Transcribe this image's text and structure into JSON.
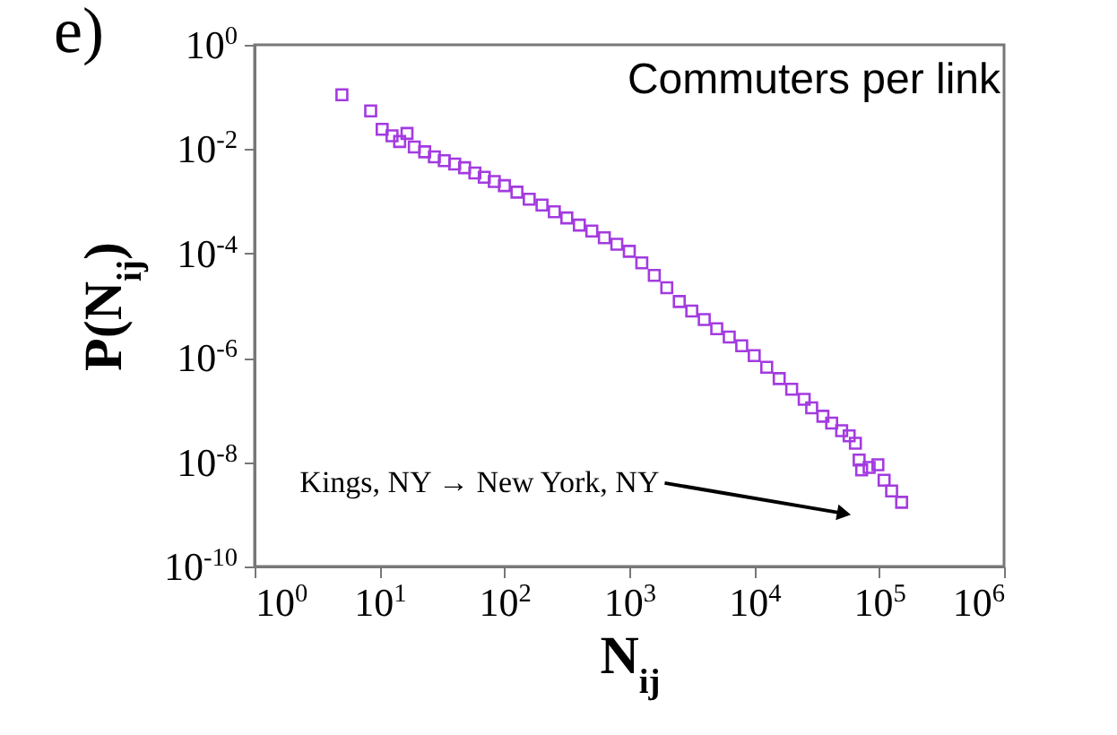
{
  "chart_data": {
    "type": "scatter",
    "title": "Commuters per link",
    "xlabel": "N$_{ij}$",
    "ylabel": "P(N$_{ij}$)",
    "log": "xy",
    "marker": "square",
    "grid": false,
    "annotations": [
      "e)",
      "Kings, NY → New York, NY"
    ],
    "xlim": [
      1,
      1000000
    ],
    "ylim": [
      1e-10,
      1
    ],
    "xticks": [
      {
        "value": 1,
        "label": "10$^{0}$"
      },
      {
        "value": 10,
        "label": "10$^{1}$"
      },
      {
        "value": 100,
        "label": "10$^{2}$"
      },
      {
        "value": 1000,
        "label": "10$^{3}$"
      },
      {
        "value": 10000,
        "label": "10$^{4}$"
      },
      {
        "value": 100000,
        "label": "10$^{5}$"
      },
      {
        "value": 1000000,
        "label": "10$^{6}$"
      }
    ],
    "yticks": [
      {
        "value": 1e-10,
        "label": "10$^{-10}$"
      },
      {
        "value": 1e-08,
        "label": "10$^{-8}$"
      },
      {
        "value": 1e-06,
        "label": "10$^{-6}$"
      },
      {
        "value": 0.0001,
        "label": "10$^{-4}$"
      },
      {
        "value": 0.01,
        "label": "10$^{-2}$"
      },
      {
        "value": 1,
        "label": "10$^{0}$"
      }
    ],
    "series": [
      {
        "color": "#a33be0",
        "x": [
          5.0,
          8.5,
          10.5,
          12.6,
          14.5,
          16.6,
          19,
          23,
          27.5,
          33,
          40,
          48,
          58,
          69,
          83,
          100,
          126,
          158,
          200,
          251,
          316,
          398,
          501,
          631,
          794,
          1000,
          1259,
          1585,
          1995,
          2512,
          3162,
          3981,
          5012,
          6310,
          7943,
          10000,
          12590,
          15850,
          19950,
          25120,
          28840,
          35480,
          41690,
          50120,
          57540,
          64570,
          69180,
          72440,
          83180,
          97720,
          109600,
          125900,
          151400
        ],
        "values": [
          0.11,
          0.054,
          0.024,
          0.018,
          0.014,
          0.02,
          0.011,
          0.0089,
          0.0071,
          0.006,
          0.0052,
          0.0044,
          0.0035,
          0.0029,
          0.0024,
          0.002,
          0.0015,
          0.0011,
          0.00085,
          0.00063,
          0.00048,
          0.00035,
          0.00027,
          0.0002,
          0.00015,
          0.00011,
          6.6e-05,
          3.8e-05,
          2.2e-05,
          1.2e-05,
          7.9e-06,
          5.4e-06,
          3.6e-06,
          2.5e-06,
          1.7e-06,
          1.1e-06,
          6.6e-07,
          4e-07,
          2.5e-07,
          1.6e-07,
          1.1e-07,
          7.6e-08,
          5.6e-08,
          4e-08,
          3.2e-08,
          2.3e-08,
          1.1e-08,
          7.1e-09,
          7.9e-09,
          8.9e-09,
          4.5e-09,
          2.8e-09,
          1.7e-09
        ]
      }
    ]
  }
}
